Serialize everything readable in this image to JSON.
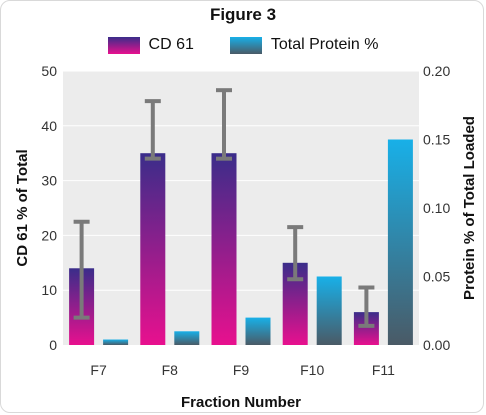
{
  "chart_data": {
    "type": "bar",
    "title": "Figure 3",
    "xlabel": "Fraction Number",
    "ylabel": "CD 61 % of Total",
    "y2label": "Protein % of Total Loaded",
    "categories": [
      "F7",
      "F8",
      "F9",
      "F10",
      "F11"
    ],
    "ylim": [
      0,
      50
    ],
    "y2lim": [
      0,
      0.2
    ],
    "yticks": [
      "0",
      "10",
      "20",
      "30",
      "40",
      "50"
    ],
    "y2ticks": [
      "0.00",
      "0.05",
      "0.10",
      "0.15",
      "0.20"
    ],
    "grid": true,
    "legend_position": "top",
    "series": [
      {
        "name": "CD 61",
        "axis": "left",
        "values": [
          14,
          35,
          35,
          15,
          6
        ],
        "error_low": [
          5,
          34,
          34,
          12,
          3.5
        ],
        "error_high": [
          22.5,
          44.5,
          46.5,
          21.5,
          10.5
        ],
        "color_top": "#3a2d8a",
        "color_bottom": "#e8108e"
      },
      {
        "name": "Total Protein %",
        "axis": "right",
        "values": [
          0.004,
          0.01,
          0.02,
          0.05,
          0.15
        ],
        "color_top": "#18b0e8",
        "color_bottom": "#4a5a66"
      }
    ],
    "error_bar_color": "#7a7a7a",
    "plot_background": "#ececec"
  }
}
